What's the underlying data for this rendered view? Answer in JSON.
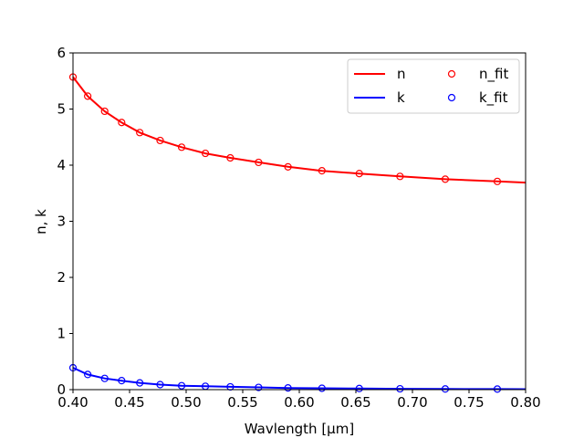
{
  "chart_data": {
    "type": "line",
    "xlabel": "Wavlength [μm]",
    "ylabel": "n, k",
    "xlim": [
      0.4,
      0.8
    ],
    "ylim": [
      0,
      6
    ],
    "xticks": [
      "0.40",
      "0.45",
      "0.50",
      "0.55",
      "0.60",
      "0.65",
      "0.70",
      "0.75",
      "0.80"
    ],
    "yticks": [
      "0",
      "1",
      "2",
      "3",
      "4",
      "5",
      "6"
    ],
    "grid": false,
    "legend": {
      "placement": "top-right",
      "columns": 2,
      "entries": [
        {
          "label": "n",
          "kind": "line",
          "color": "#ff0000"
        },
        {
          "label": "k",
          "kind": "line",
          "color": "#0000ff"
        },
        {
          "label": "n_fit",
          "kind": "marker",
          "color": "#ff0000"
        },
        {
          "label": "k_fit",
          "kind": "marker",
          "color": "#0000ff"
        }
      ]
    },
    "series": [
      {
        "name": "n",
        "kind": "line",
        "color": "#ff0000",
        "x": [
          0.4,
          0.413,
          0.428,
          0.443,
          0.459,
          0.477,
          0.496,
          0.517,
          0.539,
          0.564,
          0.59,
          0.62,
          0.653,
          0.689,
          0.729,
          0.775,
          0.8
        ],
        "y": [
          5.57,
          5.23,
          4.96,
          4.76,
          4.58,
          4.44,
          4.32,
          4.21,
          4.13,
          4.05,
          3.97,
          3.9,
          3.85,
          3.8,
          3.75,
          3.71,
          3.69
        ]
      },
      {
        "name": "k",
        "kind": "line",
        "color": "#0000ff",
        "x": [
          0.4,
          0.413,
          0.428,
          0.443,
          0.459,
          0.477,
          0.496,
          0.517,
          0.539,
          0.564,
          0.59,
          0.62,
          0.653,
          0.689,
          0.729,
          0.775,
          0.8
        ],
        "y": [
          0.39,
          0.27,
          0.2,
          0.16,
          0.12,
          0.09,
          0.07,
          0.06,
          0.05,
          0.04,
          0.03,
          0.025,
          0.02,
          0.015,
          0.012,
          0.01,
          0.008
        ]
      },
      {
        "name": "n_fit",
        "kind": "marker",
        "color": "#ff0000",
        "x": [
          0.4,
          0.413,
          0.428,
          0.443,
          0.459,
          0.477,
          0.496,
          0.517,
          0.539,
          0.564,
          0.59,
          0.62,
          0.653,
          0.689,
          0.729,
          0.775
        ],
        "y": [
          5.57,
          5.23,
          4.96,
          4.76,
          4.58,
          4.44,
          4.32,
          4.21,
          4.13,
          4.05,
          3.97,
          3.9,
          3.85,
          3.8,
          3.75,
          3.71
        ]
      },
      {
        "name": "k_fit",
        "kind": "marker",
        "color": "#0000ff",
        "x": [
          0.4,
          0.413,
          0.428,
          0.443,
          0.459,
          0.477,
          0.496,
          0.517,
          0.539,
          0.564,
          0.59,
          0.62,
          0.653,
          0.689,
          0.729,
          0.775
        ],
        "y": [
          0.39,
          0.27,
          0.2,
          0.16,
          0.12,
          0.09,
          0.07,
          0.06,
          0.05,
          0.04,
          0.03,
          0.025,
          0.02,
          0.015,
          0.012,
          0.01
        ]
      }
    ]
  }
}
